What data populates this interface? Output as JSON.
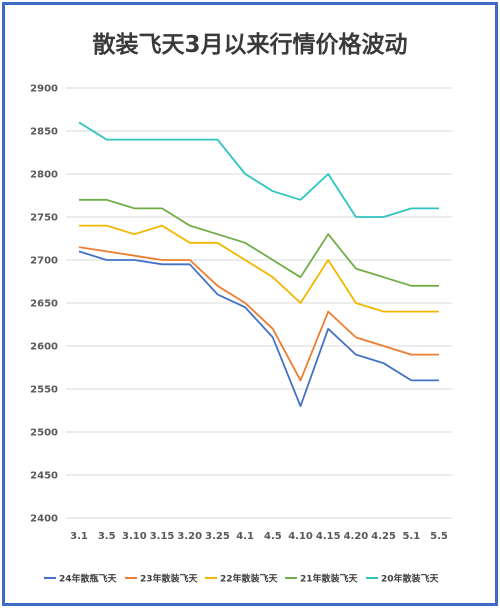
{
  "chart_data": {
    "type": "line",
    "title": "散装飞天3月以来行情价格波动",
    "xlabel": "",
    "ylabel": "",
    "categories": [
      "3.1",
      "3.5",
      "3.10",
      "3.15",
      "3.20",
      "3.25",
      "4.1",
      "4.5",
      "4.10",
      "4.15",
      "4.20",
      "4.25",
      "5.1",
      "5.5"
    ],
    "ylim": [
      2400,
      2900
    ],
    "yticks": [
      2400,
      2450,
      2500,
      2550,
      2600,
      2650,
      2700,
      2750,
      2800,
      2850,
      2900
    ],
    "grid": true,
    "legend_position": "bottom",
    "series": [
      {
        "name": "24年散瓶飞天",
        "color": "#4472c4",
        "values": [
          2710,
          2700,
          2700,
          2695,
          2695,
          2660,
          2645,
          2610,
          2530,
          2620,
          2590,
          2580,
          2560,
          2560
        ]
      },
      {
        "name": "23年散装飞天",
        "color": "#ed7d31",
        "values": [
          2715,
          2710,
          2705,
          2700,
          2700,
          2670,
          2650,
          2620,
          2560,
          2640,
          2610,
          2600,
          2590,
          2590
        ]
      },
      {
        "name": "22年散装飞天",
        "color": "#f2b800",
        "values": [
          2740,
          2740,
          2730,
          2740,
          2720,
          2720,
          2700,
          2680,
          2650,
          2700,
          2650,
          2640,
          2640,
          2640
        ]
      },
      {
        "name": "21年散装飞天",
        "color": "#70ad47",
        "values": [
          2770,
          2770,
          2760,
          2760,
          2740,
          2730,
          2720,
          2700,
          2680,
          2730,
          2690,
          2680,
          2670,
          2670
        ]
      },
      {
        "name": "20年散装飞天",
        "color": "#2ec4c0",
        "values": [
          2860,
          2840,
          2840,
          2840,
          2840,
          2840,
          2800,
          2780,
          2770,
          2800,
          2750,
          2750,
          2760,
          2760
        ]
      }
    ]
  }
}
